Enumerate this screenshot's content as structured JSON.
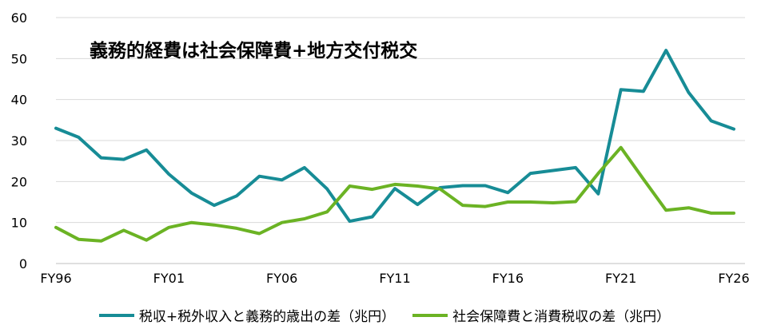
{
  "chart_data": {
    "type": "line",
    "title": "義務的経費は社会保障費+地方交付税交",
    "xlabel": "",
    "ylabel": "",
    "ylim": [
      0,
      60
    ],
    "yticks": [
      0,
      10,
      20,
      30,
      40,
      50,
      60
    ],
    "x_tick_labels": [
      "FY96",
      "FY01",
      "FY06",
      "FY11",
      "FY16",
      "FY21",
      "FY26"
    ],
    "x": [
      1996,
      1997,
      1998,
      1999,
      2000,
      2001,
      2002,
      2003,
      2004,
      2005,
      2006,
      2007,
      2008,
      2009,
      2010,
      2011,
      2012,
      2013,
      2014,
      2015,
      2016,
      2017,
      2018,
      2019,
      2020,
      2021,
      2022,
      2023,
      2024,
      2025,
      2026
    ],
    "grid": "horizontal",
    "legend_position": "bottom",
    "series": [
      {
        "name": "税収+税外収入と義務的歳出の差（兆円）",
        "color": "#178c96",
        "values": [
          33.0,
          30.8,
          25.8,
          25.4,
          27.7,
          21.8,
          17.2,
          14.2,
          16.5,
          21.3,
          20.4,
          23.4,
          18.2,
          10.3,
          11.4,
          18.3,
          14.4,
          18.5,
          19.0,
          19.0,
          17.3,
          22.0,
          22.7,
          23.4,
          17.0,
          42.4,
          42.0,
          52.0,
          41.7,
          34.8,
          32.8
        ]
      },
      {
        "name": "社会保障費と消費税収の差（兆円）",
        "color": "#6bb324",
        "values": [
          8.8,
          5.9,
          5.5,
          8.1,
          5.7,
          8.8,
          10.0,
          9.4,
          8.6,
          7.3,
          10.0,
          10.9,
          12.6,
          18.9,
          18.1,
          19.3,
          18.9,
          18.2,
          14.2,
          13.9,
          15.0,
          15.0,
          14.8,
          15.1,
          22.0,
          28.3,
          20.6,
          13.0,
          13.6,
          12.3,
          12.3
        ]
      }
    ]
  }
}
